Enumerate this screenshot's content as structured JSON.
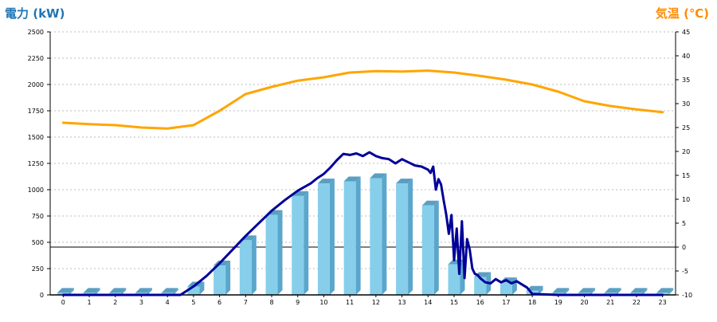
{
  "chart_data": {
    "type": "bar",
    "y_left_label": "電力 (kW)",
    "y_right_label": "気温 (℃)",
    "left_ylim": [
      0,
      2500
    ],
    "left_ticks": [
      "0",
      "250",
      "500",
      "750",
      "1000",
      "1250",
      "1500",
      "1750",
      "2000",
      "2250",
      "2500"
    ],
    "right_ylim": [
      -10,
      45
    ],
    "right_ticks": [
      "-10",
      "-5",
      "0",
      "5",
      "10",
      "15",
      "20",
      "25",
      "30",
      "35",
      "40",
      "45"
    ],
    "categories": [
      "0",
      "1",
      "2",
      "3",
      "4",
      "5",
      "6",
      "7",
      "8",
      "9",
      "10",
      "11",
      "12",
      "13",
      "14",
      "15",
      "16",
      "17",
      "18",
      "19",
      "20",
      "21",
      "22",
      "23"
    ],
    "series": [
      {
        "type": "bar",
        "axis": "left",
        "values": [
          20,
          20,
          20,
          20,
          20,
          80,
          280,
          520,
          760,
          940,
          1060,
          1080,
          1110,
          1060,
          850,
          290,
          170,
          120,
          40,
          20,
          20,
          20,
          20,
          20
        ]
      },
      {
        "type": "line",
        "axis": "left",
        "x": [
          0,
          4,
          4.5,
          5,
          5.5,
          6,
          6.5,
          7,
          7.5,
          8,
          8.5,
          9,
          9.5,
          9.75,
          10,
          10.25,
          10.5,
          10.75,
          11,
          11.25,
          11.5,
          11.75,
          12,
          12.25,
          12.5,
          12.75,
          13,
          13.25,
          13.5,
          13.75,
          14,
          14.1,
          14.2,
          14.3,
          14.4,
          14.5,
          14.6,
          14.7,
          14.8,
          14.9,
          15,
          15.1,
          15.2,
          15.3,
          15.4,
          15.5,
          15.6,
          15.7,
          15.8,
          15.9,
          16,
          16.2,
          16.4,
          16.6,
          16.8,
          17,
          17.2,
          17.4,
          17.6,
          17.8,
          18,
          19,
          23
        ],
        "values": [
          0,
          0,
          0,
          80,
          180,
          300,
          430,
          560,
          680,
          800,
          900,
          990,
          1060,
          1110,
          1150,
          1210,
          1280,
          1340,
          1330,
          1345,
          1320,
          1355,
          1320,
          1300,
          1290,
          1250,
          1290,
          1260,
          1230,
          1220,
          1190,
          1160,
          1220,
          1000,
          1100,
          1050,
          900,
          760,
          580,
          760,
          330,
          630,
          200,
          700,
          160,
          530,
          430,
          250,
          200,
          190,
          160,
          120,
          110,
          150,
          120,
          140,
          110,
          130,
          100,
          70,
          10,
          0,
          0
        ]
      },
      {
        "type": "line",
        "axis": "right",
        "x": [
          0,
          1,
          2,
          3,
          4,
          5,
          6,
          7,
          8,
          9,
          10,
          11,
          12,
          13,
          14,
          15,
          16,
          17,
          18,
          19,
          20,
          21,
          22,
          23
        ],
        "values": [
          26,
          25.7,
          25.5,
          25,
          24.8,
          25.5,
          28.5,
          32,
          33.5,
          34.8,
          35.5,
          36.5,
          36.8,
          36.7,
          36.9,
          36.5,
          35.8,
          35,
          34,
          32.5,
          30.5,
          29.5,
          28.8,
          28.2
        ]
      }
    ],
    "colors": {
      "bar_front": "#87CEEB",
      "bar_side": "#5AA6CC",
      "bar_top": "#5A9FC2",
      "power_line": "#000099",
      "temp_line": "#FFA500",
      "left_title": "#1F77B4",
      "right_title": "#FF8C00",
      "grid": "#BBBBBB",
      "axis": "#000000",
      "zero_line": "#000000"
    },
    "grid": "dashed horizontal"
  }
}
